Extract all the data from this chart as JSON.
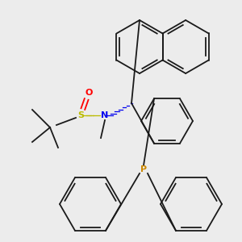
{
  "bg_color": "#ececec",
  "bond_color": "#1a1a1a",
  "atom_colors": {
    "N": "#0000ee",
    "S": "#bbbb00",
    "O": "#ff0000",
    "P": "#cc8800",
    "C": "#1a1a1a"
  },
  "figsize": [
    3.0,
    3.0
  ],
  "dpi": 100
}
